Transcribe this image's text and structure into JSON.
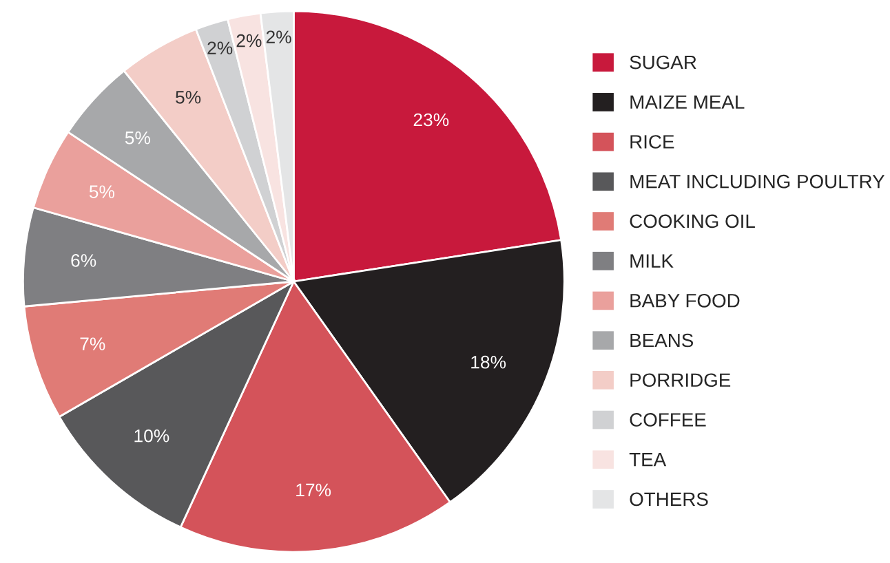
{
  "chart_data": {
    "type": "pie",
    "categories": [
      "SUGAR",
      "MAIZE MEAL",
      "RICE",
      "MEAT INCLUDING POULTRY",
      "COOKING OIL",
      "MILK",
      "BABY FOOD",
      "BEANS",
      "PORRIDGE",
      "COFFEE",
      "TEA",
      "OTHERS"
    ],
    "values": [
      23,
      18,
      17,
      10,
      7,
      6,
      5,
      5,
      5,
      2,
      2,
      2
    ],
    "value_labels": [
      "23%",
      "18%",
      "17%",
      "10%",
      "7%",
      "6%",
      "5%",
      "5%",
      "5%",
      "2%",
      "2%",
      "2%"
    ],
    "colors": [
      "#c8193c",
      "#231f20",
      "#d4535a",
      "#58585a",
      "#e07b76",
      "#7f7f82",
      "#eaa09c",
      "#a7a8aa",
      "#f3cdc7",
      "#d0d1d3",
      "#f8e3e1",
      "#e4e5e6"
    ],
    "legend": "right"
  }
}
